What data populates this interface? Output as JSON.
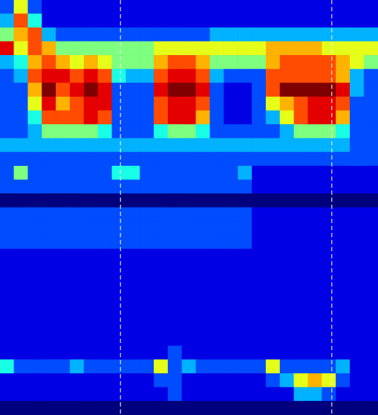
{
  "chart_data": {
    "type": "heatmap",
    "xlim": [
      0,
      27
    ],
    "ylim": [
      0,
      30
    ],
    "color_range": [
      0,
      10
    ],
    "tick_labels": false,
    "grid": false,
    "vlines": [
      8.6,
      23.7
    ],
    "cells": [
      [
        2,
        6,
        2,
        1,
        1,
        1,
        1,
        1,
        1,
        1,
        1,
        1,
        1,
        1,
        1,
        1,
        1,
        1,
        1,
        1,
        1,
        1,
        1,
        1,
        1,
        1,
        1
      ],
      [
        3,
        8,
        4,
        1,
        1,
        1,
        1,
        1,
        1,
        1,
        1,
        1,
        1,
        1,
        1,
        1,
        1,
        1,
        1,
        1,
        1,
        1,
        1,
        1,
        1,
        1,
        1
      ],
      [
        5,
        7,
        8,
        3,
        2,
        2,
        2,
        2,
        2,
        2,
        2,
        2,
        2,
        2,
        2,
        3,
        3,
        3,
        3,
        3,
        3,
        3,
        3,
        3,
        3,
        3,
        3
      ],
      [
        9,
        6,
        8,
        7,
        5,
        5,
        5,
        5,
        5,
        5,
        5,
        6,
        6,
        6,
        6,
        6,
        6,
        6,
        6,
        7,
        7,
        7,
        7,
        6,
        6,
        6,
        6
      ],
      [
        3,
        4,
        7,
        8,
        7,
        6,
        7,
        6,
        5,
        5,
        5,
        7,
        8,
        8,
        7,
        5,
        5,
        5,
        5,
        7,
        8,
        8,
        8,
        8,
        7,
        6,
        5
      ],
      [
        2,
        3,
        8,
        9,
        9,
        8,
        9,
        8,
        4,
        3,
        3,
        8,
        9,
        9,
        8,
        3,
        2,
        2,
        2,
        8,
        8,
        8,
        8,
        8,
        7,
        3,
        2
      ],
      [
        2,
        2,
        7,
        10,
        8,
        9,
        10,
        9,
        2,
        2,
        2,
        9,
        10,
        10,
        9,
        2,
        1,
        1,
        2,
        8,
        10,
        10,
        10,
        10,
        9,
        3,
        2
      ],
      [
        2,
        2,
        6,
        9,
        7,
        8,
        9,
        9,
        2,
        2,
        2,
        8,
        9,
        9,
        8,
        2,
        1,
        1,
        2,
        6,
        7,
        8,
        9,
        9,
        8,
        2,
        2
      ],
      [
        2,
        2,
        4,
        8,
        8,
        8,
        9,
        8,
        2,
        2,
        2,
        8,
        9,
        9,
        7,
        2,
        1,
        1,
        2,
        3,
        6,
        8,
        9,
        9,
        7,
        2,
        2
      ],
      [
        2,
        2,
        3,
        5,
        5,
        5,
        5,
        4,
        2,
        2,
        2,
        4,
        5,
        5,
        4,
        2,
        2,
        2,
        2,
        2,
        3,
        5,
        5,
        5,
        4,
        2,
        2
      ],
      [
        3,
        3,
        3,
        3,
        3,
        3,
        3,
        3,
        3,
        3,
        3,
        3,
        3,
        3,
        3,
        3,
        3,
        3,
        3,
        3,
        3,
        3,
        3,
        3,
        3,
        2,
        2
      ],
      [
        2,
        2,
        2,
        2,
        2,
        2,
        2,
        2,
        2,
        2,
        2,
        2,
        2,
        2,
        2,
        2,
        2,
        2,
        2,
        2,
        2,
        2,
        2,
        2,
        2,
        2,
        2
      ],
      [
        2,
        5,
        2,
        2,
        2,
        2,
        2,
        2,
        4,
        4,
        2,
        2,
        2,
        2,
        2,
        2,
        2,
        3,
        1,
        1,
        1,
        1,
        1,
        1,
        1,
        1,
        1
      ],
      [
        2,
        2,
        2,
        2,
        2,
        2,
        2,
        2,
        2,
        2,
        2,
        2,
        2,
        2,
        2,
        2,
        2,
        2,
        1,
        1,
        1,
        1,
        1,
        1,
        1,
        1,
        1
      ],
      [
        0,
        0,
        0,
        0,
        0,
        0,
        0,
        0,
        0,
        0,
        0,
        0,
        0,
        0,
        0,
        0,
        0,
        0,
        0,
        0,
        0,
        0,
        0,
        0,
        0,
        0,
        0
      ],
      [
        2,
        2,
        2,
        2,
        2,
        2,
        2,
        2,
        2,
        2,
        2,
        2,
        2,
        2,
        2,
        2,
        2,
        2,
        1,
        1,
        1,
        1,
        1,
        1,
        1,
        1,
        1
      ],
      [
        2,
        2,
        2,
        2,
        2,
        2,
        2,
        2,
        2,
        2,
        2,
        2,
        2,
        2,
        2,
        2,
        2,
        2,
        1,
        1,
        1,
        1,
        1,
        1,
        1,
        1,
        1
      ],
      [
        2,
        2,
        2,
        2,
        2,
        2,
        2,
        2,
        2,
        2,
        2,
        2,
        2,
        2,
        2,
        2,
        2,
        2,
        1,
        1,
        1,
        1,
        1,
        1,
        1,
        1,
        1
      ],
      [
        1,
        1,
        1,
        1,
        1,
        1,
        1,
        1,
        1,
        1,
        1,
        1,
        1,
        1,
        1,
        1,
        1,
        1,
        1,
        1,
        1,
        1,
        1,
        1,
        1,
        1,
        1
      ],
      [
        1,
        1,
        1,
        1,
        1,
        1,
        1,
        1,
        1,
        1,
        1,
        1,
        1,
        1,
        1,
        1,
        1,
        1,
        1,
        1,
        1,
        1,
        1,
        1,
        1,
        1,
        1
      ],
      [
        1,
        1,
        1,
        1,
        1,
        1,
        1,
        1,
        1,
        1,
        1,
        1,
        1,
        1,
        1,
        1,
        1,
        1,
        1,
        1,
        1,
        1,
        1,
        1,
        1,
        1,
        1
      ],
      [
        1,
        1,
        1,
        1,
        1,
        1,
        1,
        1,
        1,
        1,
        1,
        1,
        1,
        1,
        1,
        1,
        1,
        1,
        1,
        1,
        1,
        1,
        1,
        1,
        1,
        1,
        1
      ],
      [
        1,
        1,
        1,
        1,
        1,
        1,
        1,
        1,
        1,
        1,
        1,
        1,
        1,
        1,
        1,
        1,
        1,
        1,
        1,
        1,
        1,
        1,
        1,
        1,
        1,
        1,
        1
      ],
      [
        1,
        1,
        1,
        1,
        1,
        1,
        1,
        1,
        1,
        1,
        1,
        1,
        1,
        1,
        1,
        1,
        1,
        1,
        1,
        1,
        1,
        1,
        1,
        1,
        1,
        1,
        1
      ],
      [
        1,
        1,
        1,
        1,
        1,
        1,
        1,
        1,
        1,
        1,
        1,
        1,
        1,
        1,
        1,
        1,
        1,
        1,
        1,
        1,
        1,
        1,
        1,
        1,
        1,
        1,
        1
      ],
      [
        1,
        1,
        1,
        1,
        1,
        1,
        1,
        1,
        1,
        1,
        1,
        1,
        2,
        1,
        1,
        1,
        1,
        1,
        1,
        1,
        1,
        1,
        1,
        1,
        1,
        1,
        1
      ],
      [
        4,
        2,
        2,
        2,
        2,
        3,
        2,
        2,
        2,
        2,
        2,
        6,
        2,
        3,
        2,
        2,
        2,
        2,
        2,
        6,
        2,
        2,
        2,
        2,
        3,
        1,
        1
      ],
      [
        1,
        1,
        1,
        1,
        1,
        1,
        1,
        1,
        1,
        1,
        1,
        2,
        2,
        1,
        1,
        1,
        1,
        1,
        1,
        2,
        3,
        6,
        7,
        6,
        2,
        1,
        1
      ],
      [
        1,
        1,
        1,
        1,
        1,
        1,
        1,
        1,
        1,
        1,
        1,
        1,
        2,
        1,
        1,
        1,
        1,
        1,
        1,
        1,
        1,
        3,
        3,
        2,
        1,
        1,
        1
      ],
      [
        0,
        0,
        0,
        0,
        0,
        0,
        0,
        0,
        0,
        0,
        0,
        0,
        0,
        0,
        0,
        0,
        0,
        0,
        0,
        0,
        0,
        0,
        0,
        0,
        0,
        0,
        0
      ]
    ]
  }
}
